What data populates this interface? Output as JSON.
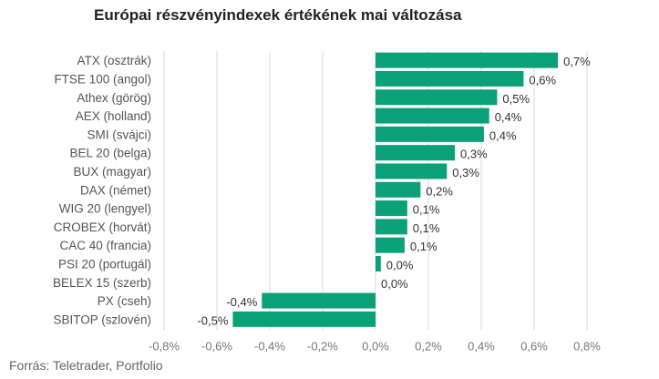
{
  "chart_data": {
    "type": "bar",
    "orientation": "horizontal",
    "title": "Európai részvényindexek értékének mai változása",
    "source": "Forrás: Teletrader, Portfolio",
    "categories": [
      "ATX (osztrák)",
      "FTSE 100 (angol)",
      "Athex (görög)",
      "AEX (holland)",
      "SMI (svájci)",
      "BEL 20 (belga)",
      "BUX (magyar)",
      "DAX (német)",
      "WIG 20 (lengyel)",
      "CROBEX (horvát)",
      "CAC 40 (francia)",
      "PSI 20 (portugál)",
      "BELEX 15 (szerb)",
      "PX (cseh)",
      "SBITOP (szlovén)"
    ],
    "values": [
      0.69,
      0.56,
      0.46,
      0.43,
      0.41,
      0.3,
      0.27,
      0.17,
      0.12,
      0.12,
      0.11,
      0.02,
      0.0,
      -0.43,
      -0.54
    ],
    "value_labels": [
      "0,7%",
      "0,6%",
      "0,5%",
      "0,4%",
      "0,4%",
      "0,3%",
      "0,3%",
      "0,2%",
      "0,1%",
      "0,1%",
      "0,1%",
      "0,0%",
      "0,0%",
      "-0,4%",
      "-0,5%"
    ],
    "xlim": [
      -0.8,
      0.8
    ],
    "ticks": [
      -0.8,
      -0.6,
      -0.4,
      -0.2,
      0.0,
      0.2,
      0.4,
      0.6,
      0.8
    ],
    "tick_labels": [
      "-0,8%",
      "-0,6%",
      "-0,4%",
      "-0,2%",
      "0,0%",
      "0,2%",
      "0,4%",
      "0,6%",
      "0,8%"
    ],
    "bar_color": "#0aa078",
    "grid": true
  }
}
